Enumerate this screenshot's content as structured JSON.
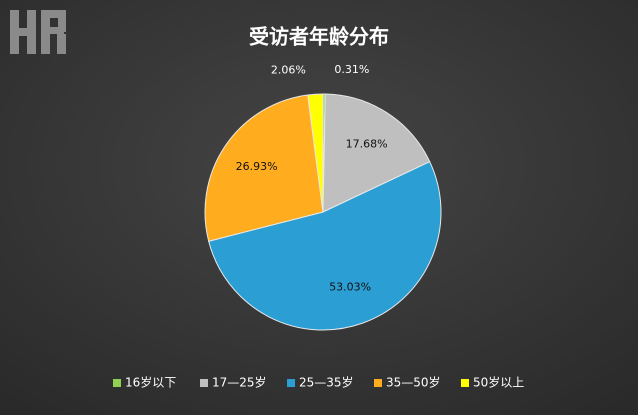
{
  "chart_data": {
    "type": "pie",
    "title": "受访者年龄分布",
    "categories": [
      "16岁以下",
      "17—25岁",
      "25—35岁",
      "35—50岁",
      "50岁以上"
    ],
    "values": [
      0.31,
      17.68,
      53.03,
      26.93,
      2.06
    ],
    "value_labels": [
      "0.31%",
      "17.68%",
      "53.03%",
      "26.93%",
      "2.06%"
    ],
    "colors": [
      "#92d050",
      "#bfbfbf",
      "#2b9fd4",
      "#ffad1f",
      "#ffff00"
    ],
    "legend": "bottom"
  }
}
